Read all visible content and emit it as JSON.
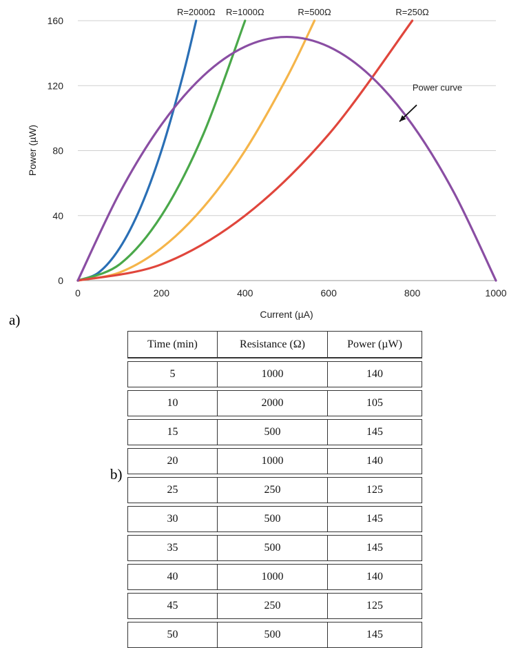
{
  "chart_data": [
    {
      "type": "line",
      "xlabel": "Current (µA)",
      "ylabel": "Power (µW)",
      "xlim": [
        0,
        1000
      ],
      "ylim": [
        0,
        160
      ],
      "x_ticks": [
        0,
        200,
        400,
        600,
        800,
        1000
      ],
      "y_ticks": [
        0,
        40,
        80,
        120,
        160
      ],
      "grid": "horizontal",
      "series": [
        {
          "name": "R=2000Ω",
          "color": "#2a6fb5",
          "x": [
            0,
            50,
            100,
            150,
            200,
            250,
            283
          ],
          "y": [
            0,
            5,
            20,
            45,
            80,
            125,
            160
          ]
        },
        {
          "name": "R=1000Ω",
          "color": "#4aa84a",
          "x": [
            0,
            100,
            200,
            300,
            400
          ],
          "y": [
            0,
            10,
            40,
            90,
            160
          ]
        },
        {
          "name": "R=500Ω",
          "color": "#f5b54a",
          "x": [
            0,
            100,
            200,
            300,
            400,
            500,
            566
          ],
          "y": [
            0,
            5,
            20,
            45,
            80,
            125,
            160
          ]
        },
        {
          "name": "R=250Ω",
          "color": "#e0463c",
          "x": [
            0,
            200,
            400,
            600,
            800
          ],
          "y": [
            0,
            10,
            40,
            90,
            160
          ]
        },
        {
          "name": "Power curve",
          "color": "#8a4ea3",
          "x": [
            0,
            100,
            200,
            300,
            400,
            500,
            600,
            700,
            800,
            900,
            1000
          ],
          "y": [
            0,
            54,
            96,
            126,
            144,
            150,
            144,
            126,
            96,
            54,
            0
          ]
        }
      ],
      "annotations": [
        {
          "text": "Power curve",
          "x": 860,
          "y": 117
        }
      ]
    },
    {
      "type": "table",
      "columns": [
        "Time (min)",
        "Resistance (Ω)",
        "Power (µW)"
      ],
      "rows": [
        [
          "5",
          "1000",
          "140"
        ],
        [
          "10",
          "2000",
          "105"
        ],
        [
          "15",
          "500",
          "145"
        ],
        [
          "20",
          "1000",
          "140"
        ],
        [
          "25",
          "250",
          "125"
        ],
        [
          "30",
          "500",
          "145"
        ],
        [
          "35",
          "500",
          "145"
        ],
        [
          "40",
          "1000",
          "140"
        ],
        [
          "45",
          "250",
          "125"
        ],
        [
          "50",
          "500",
          "145"
        ]
      ]
    }
  ],
  "labels": {
    "panel_a": "a)",
    "panel_b": "b)"
  }
}
